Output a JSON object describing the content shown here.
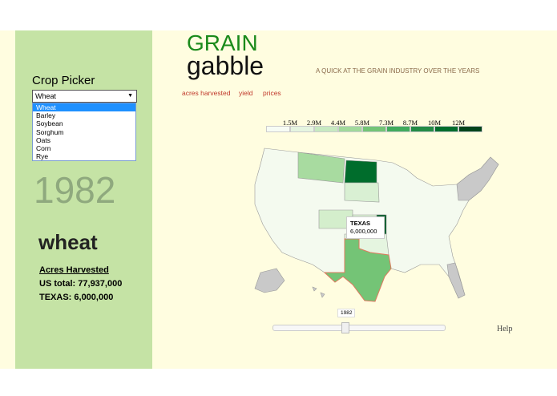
{
  "header": {
    "title": "GRAIN",
    "subtitle": "gabble",
    "tagline": "A QUICK AT THE GRAIN INDUSTRY OVER THE YEARS"
  },
  "nav": [
    "acres harvested",
    "yield",
    "prices"
  ],
  "sidebar": {
    "picker_label": "Crop Picker",
    "selected": "Wheat",
    "options": [
      "Wheat",
      "Barley",
      "Soybean",
      "Sorghum",
      "Oats",
      "Corn",
      "Rye"
    ],
    "year": "1982",
    "crop": "wheat",
    "metric": "Acres Harvested",
    "us_total": "US total: 77,937,000",
    "state_total": "TEXAS: 6,000,000"
  },
  "legend": [
    "1.5M",
    "2.9M",
    "4.4M",
    "5.8M",
    "7.3M",
    "8.7M",
    "10M",
    "12M"
  ],
  "tooltip": {
    "state": "TEXAS",
    "value": "6,000,000"
  },
  "slider": {
    "value": "1982"
  },
  "help": "Help"
}
